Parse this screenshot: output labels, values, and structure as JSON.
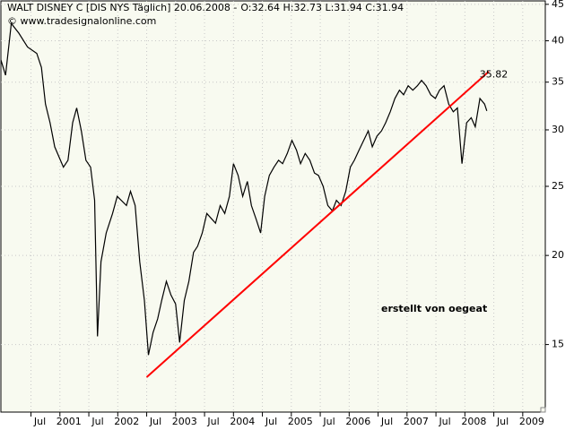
{
  "chart_data": {
    "type": "line",
    "title": "WALT DISNEY C [DIS NYS  Täglich] 20.06.2008 -",
    "quote": "O:32.64 H:32.73 L:31.94 C:31.94",
    "quote_color": "#ff0000",
    "source": "© www.tradesignalonline.com",
    "annotation": "erstellt von oegeat",
    "annotation_color": "#000080",
    "log_scale": true,
    "grid": true,
    "xlim": [
      1999.98,
      2009.39
    ],
    "ylim": [
      12.06,
      45.5
    ],
    "yticks": [
      15,
      20,
      25,
      30,
      35,
      40,
      45
    ],
    "xticks": [
      {
        "value": 2000.5,
        "label": "Jul"
      },
      {
        "value": 2001,
        "label": "2001"
      },
      {
        "value": 2001.5,
        "label": "Jul"
      },
      {
        "value": 2002,
        "label": "2002"
      },
      {
        "value": 2002.5,
        "label": "Jul"
      },
      {
        "value": 2003,
        "label": "2003"
      },
      {
        "value": 2003.5,
        "label": "Jul"
      },
      {
        "value": 2004,
        "label": "2004"
      },
      {
        "value": 2004.5,
        "label": "Jul"
      },
      {
        "value": 2005,
        "label": "2005"
      },
      {
        "value": 2005.5,
        "label": "Jul"
      },
      {
        "value": 2006,
        "label": "2006"
      },
      {
        "value": 2006.5,
        "label": "Jul"
      },
      {
        "value": 2007,
        "label": "2007"
      },
      {
        "value": 2007.5,
        "label": "Jul"
      },
      {
        "value": 2008,
        "label": "2008"
      },
      {
        "value": 2008.5,
        "label": "Jul"
      },
      {
        "value": 2009,
        "label": "2009"
      }
    ],
    "series": [
      {
        "color": "#000000",
        "x": [
          1999.98,
          2000.06,
          2000.16,
          2000.29,
          2000.44,
          2000.6,
          2000.68,
          2000.75,
          2000.83,
          2000.91,
          2001.06,
          2001.14,
          2001.22,
          2001.29,
          2001.37,
          2001.45,
          2001.53,
          2001.6,
          2001.65,
          2001.71,
          2001.8,
          2001.91,
          2001.99,
          2002.15,
          2002.22,
          2002.3,
          2002.38,
          2002.46,
          2002.53,
          2002.61,
          2002.69,
          2002.76,
          2002.84,
          2002.92,
          2003.0,
          2003.07,
          2003.15,
          2003.23,
          2003.31,
          2003.38,
          2003.46,
          2003.54,
          2003.69,
          2003.77,
          2003.85,
          2003.93,
          2004.0,
          2004.08,
          2004.16,
          2004.24,
          2004.31,
          2004.39,
          2004.47,
          2004.54,
          2004.62,
          2004.7,
          2004.78,
          2004.85,
          2004.93,
          2005.01,
          2005.09,
          2005.16,
          2005.24,
          2005.32,
          2005.4,
          2005.47,
          2005.55,
          2005.63,
          2005.71,
          2005.78,
          2005.86,
          2005.94,
          2006.02,
          2006.09,
          2006.17,
          2006.25,
          2006.33,
          2006.4,
          2006.48,
          2006.56,
          2006.63,
          2006.71,
          2006.79,
          2006.87,
          2006.94,
          2007.02,
          2007.1,
          2007.18,
          2007.25,
          2007.33,
          2007.41,
          2007.49,
          2007.56,
          2007.64,
          2007.72,
          2007.8,
          2007.87,
          2007.95,
          2008.03,
          2008.11,
          2008.18,
          2008.26,
          2008.34,
          2008.38
        ],
        "values": [
          37.6,
          35.8,
          42.3,
          41.0,
          39.2,
          38.4,
          36.7,
          32.6,
          30.7,
          28.4,
          26.6,
          27.2,
          30.7,
          32.2,
          29.9,
          27.2,
          26.6,
          23.9,
          15.4,
          19.6,
          21.5,
          22.9,
          24.2,
          23.5,
          24.6,
          23.5,
          19.6,
          17.3,
          14.5,
          15.6,
          16.3,
          17.3,
          18.4,
          17.6,
          17.1,
          15.1,
          17.3,
          18.4,
          20.2,
          20.6,
          21.5,
          22.9,
          22.2,
          23.5,
          22.9,
          24.2,
          26.9,
          25.9,
          24.2,
          25.4,
          23.5,
          22.5,
          21.5,
          24.2,
          25.9,
          26.6,
          27.2,
          26.9,
          27.8,
          29.0,
          28.1,
          26.9,
          27.8,
          27.2,
          26.1,
          25.9,
          25.0,
          23.5,
          23.1,
          23.9,
          23.5,
          24.6,
          26.6,
          27.2,
          28.1,
          29.0,
          29.9,
          28.4,
          29.4,
          29.9,
          30.7,
          31.8,
          33.2,
          34.1,
          33.6,
          34.6,
          34.1,
          34.6,
          35.2,
          34.6,
          33.6,
          33.2,
          34.1,
          34.6,
          32.6,
          31.8,
          32.2,
          26.9,
          30.7,
          31.2,
          30.3,
          33.2,
          32.6,
          31.9
        ]
      }
    ],
    "trendline": {
      "color": "#ff0000",
      "x": [
        2002.5,
        2008.41
      ],
      "values": [
        13.5,
        36.2
      ],
      "label": 35.82,
      "label_color": "#cc0000"
    }
  }
}
